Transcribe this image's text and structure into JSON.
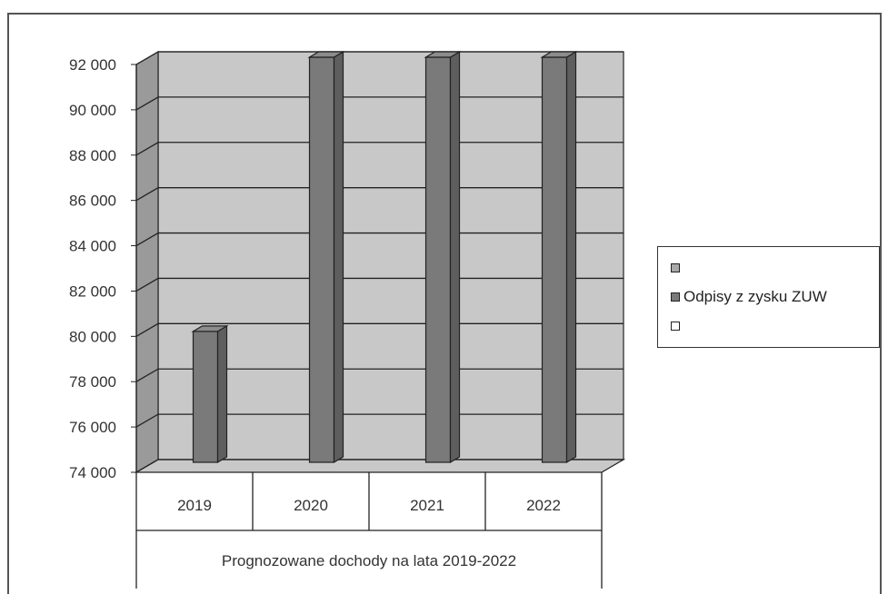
{
  "chart_data": {
    "type": "bar",
    "categories": [
      "2019",
      "2020",
      "2021",
      "2022"
    ],
    "category_group_label": "Prognozowane dochody na lata 2019-2022",
    "series": [
      {
        "name": "",
        "values": [
          0,
          0,
          0,
          0
        ],
        "color": "#a9a9a9"
      },
      {
        "name": "Odpisy z zysku ZUW",
        "values": [
          80100,
          92200,
          92200,
          92200
        ],
        "color": "#7a7a7a"
      },
      {
        "name": "",
        "values": [
          0,
          0,
          0,
          0
        ],
        "color": "#ffffff"
      }
    ],
    "ylim": [
      74000,
      92000
    ],
    "yticks": [
      "74 000",
      "76 000",
      "78 000",
      "80 000",
      "82 000",
      "84 000",
      "86 000",
      "88 000",
      "90 000",
      "92 000"
    ],
    "ytick_values": [
      74000,
      76000,
      78000,
      80000,
      82000,
      84000,
      86000,
      88000,
      90000,
      92000
    ],
    "grid": true,
    "legend_position": "right",
    "style": "3d-column",
    "colors": {
      "back_wall": "#c8c8c8",
      "floor": "#c8c8c8",
      "grid": "#222222"
    }
  }
}
